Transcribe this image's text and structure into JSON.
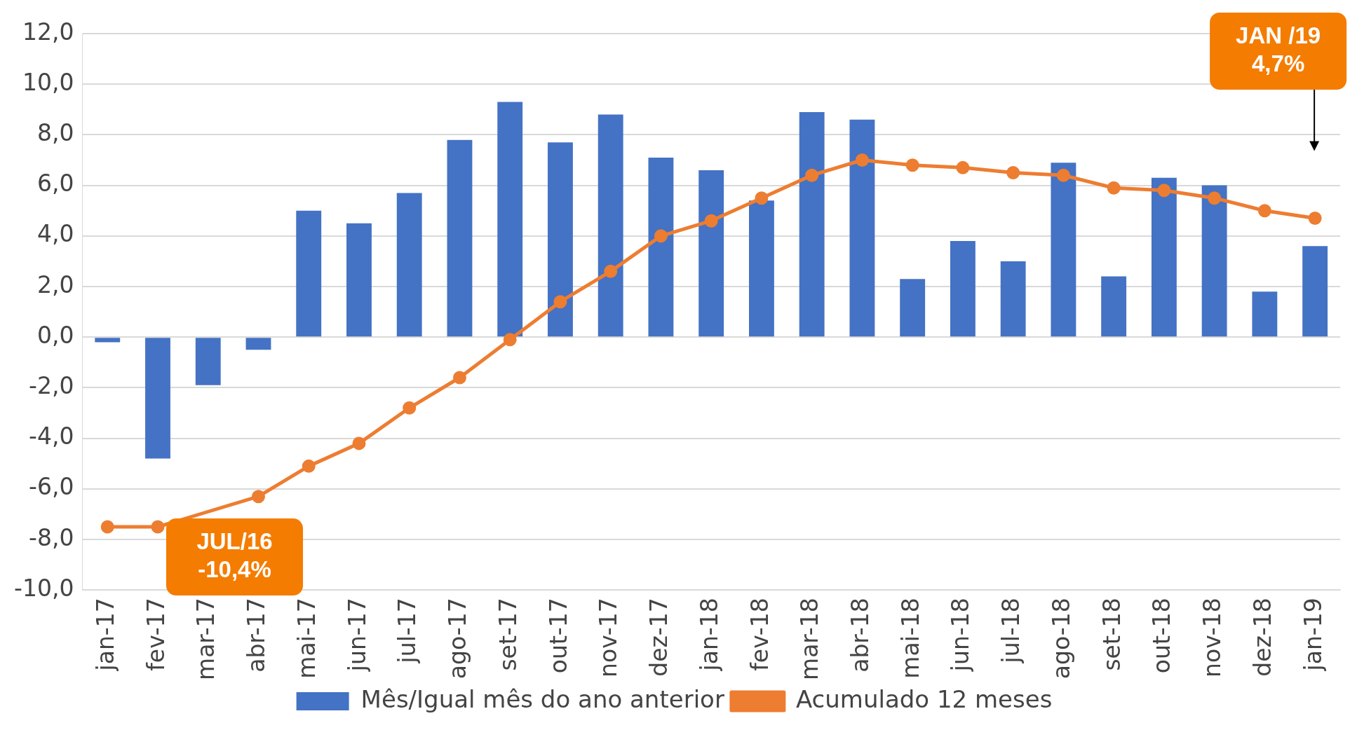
{
  "chart_data": {
    "type": "bar",
    "categories": [
      "jan-17",
      "fev-17",
      "mar-17",
      "abr-17",
      "mai-17",
      "jun-17",
      "jul-17",
      "ago-17",
      "set-17",
      "out-17",
      "nov-17",
      "dez-17",
      "jan-18",
      "fev-18",
      "mar-18",
      "abr-18",
      "mai-18",
      "jun-18",
      "jul-18",
      "ago-18",
      "set-18",
      "out-18",
      "nov-18",
      "dez-18",
      "jan-19"
    ],
    "series": [
      {
        "name": "Mês/Igual mês do ano anterior",
        "color": "#4472c4",
        "values": [
          -0.2,
          -4.8,
          -1.9,
          -0.5,
          5.0,
          4.5,
          5.7,
          7.8,
          9.3,
          7.7,
          8.8,
          7.1,
          6.6,
          5.4,
          8.9,
          8.6,
          2.3,
          3.8,
          3.0,
          6.9,
          2.4,
          6.3,
          6.0,
          1.8,
          3.6
        ]
      },
      {
        "name": "Acumulado 12 meses",
        "type": "line",
        "color": "#ed7d31",
        "marker": "circle",
        "values": [
          -7.5,
          -7.5,
          null,
          -6.3,
          -5.1,
          -4.2,
          -2.8,
          -1.6,
          -0.1,
          1.4,
          2.6,
          4.0,
          4.6,
          5.5,
          6.4,
          7.0,
          6.8,
          6.7,
          6.5,
          6.4,
          5.9,
          5.8,
          5.5,
          5.0,
          4.7
        ]
      }
    ],
    "ylim": [
      -10,
      12
    ],
    "yticks": [
      {
        "value": -10,
        "label": "-10,0"
      },
      {
        "value": -8,
        "label": "-8,0"
      },
      {
        "value": -6,
        "label": "-6,0"
      },
      {
        "value": -4,
        "label": "-4,0"
      },
      {
        "value": -2,
        "label": "-2,0"
      },
      {
        "value": 0,
        "label": "0,0"
      },
      {
        "value": 2,
        "label": "2,0"
      },
      {
        "value": 4,
        "label": "4,0"
      },
      {
        "value": 6,
        "label": "6,0"
      },
      {
        "value": 8,
        "label": "8,0"
      },
      {
        "value": 10,
        "label": "10,0"
      },
      {
        "value": 12,
        "label": "12,0"
      }
    ],
    "grid": "y",
    "legend": "bottom",
    "annotations": [
      "JUL/16\n-10,4%",
      "JAN /19\n4,7%"
    ]
  }
}
